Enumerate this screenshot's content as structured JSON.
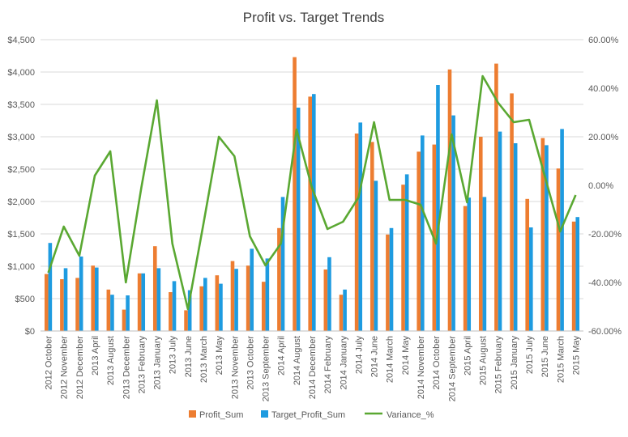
{
  "chart_data": {
    "type": "bar",
    "title": "Profit vs. Target Trends",
    "categories": [
      "2012 October",
      "2012 November",
      "2012 December",
      "2013 April",
      "2013 August",
      "2013 December",
      "2013 February",
      "2013 January",
      "2013 July",
      "2013 June",
      "2013 March",
      "2013 May",
      "2013 November",
      "2013 October",
      "2013 September",
      "2014 April",
      "2014 August",
      "2014 December",
      "2014 February",
      "2014 January",
      "2014 July",
      "2014 June",
      "2014 March",
      "2014 May",
      "2014 November",
      "2014 October",
      "2014 September",
      "2015 April",
      "2015 August",
      "2015 February",
      "2015 January",
      "2015 July",
      "2015 June",
      "2015 March",
      "2015 May"
    ],
    "series": [
      {
        "name": "Profit_Sum",
        "type": "bar",
        "axis": "left",
        "color": "#ed7d31",
        "values": [
          880,
          800,
          820,
          1010,
          640,
          330,
          890,
          1310,
          600,
          320,
          690,
          860,
          1080,
          1010,
          760,
          1590,
          4230,
          3620,
          950,
          560,
          3050,
          2920,
          1490,
          2260,
          2770,
          2880,
          4040,
          1930,
          3000,
          4130,
          3670,
          2040,
          2980,
          2510,
          1690
        ]
      },
      {
        "name": "Target_Profit_Sum",
        "type": "bar",
        "axis": "left",
        "color": "#1e9be0",
        "values": [
          1360,
          970,
          1150,
          980,
          560,
          550,
          890,
          970,
          770,
          630,
          820,
          730,
          960,
          1270,
          1120,
          2070,
          3450,
          3660,
          1140,
          640,
          3220,
          2320,
          1590,
          2420,
          3020,
          3800,
          3330,
          2060,
          2070,
          3080,
          2900,
          1600,
          2870,
          3120,
          1760
        ]
      },
      {
        "name": "Variance_%",
        "type": "line",
        "axis": "right",
        "color": "#5aa832",
        "values": [
          -0.36,
          -0.17,
          -0.29,
          0.04,
          0.14,
          -0.4,
          -0.01,
          0.35,
          -0.24,
          -0.51,
          -0.16,
          0.2,
          0.12,
          -0.21,
          -0.33,
          -0.24,
          0.23,
          -0.01,
          -0.18,
          -0.15,
          -0.05,
          0.26,
          -0.06,
          -0.06,
          -0.08,
          -0.24,
          0.21,
          -0.07,
          0.45,
          0.34,
          0.26,
          0.27,
          0.04,
          -0.19,
          -0.04
        ]
      }
    ],
    "y_left": {
      "min": 0,
      "max": 4500,
      "step": 500,
      "ticks": [
        "$0",
        "$500",
        "$1,000",
        "$1,500",
        "$2,000",
        "$2,500",
        "$3,000",
        "$3,500",
        "$4,000",
        "$4,500"
      ]
    },
    "y_right": {
      "min": -0.6,
      "max": 0.6,
      "step": 0.2,
      "ticks": [
        "-60.00%",
        "-40.00%",
        "-20.00%",
        "0.00%",
        "20.00%",
        "40.00%",
        "60.00%"
      ]
    },
    "grid": true,
    "legend_position": "bottom"
  },
  "colors": {
    "grid": "#d9d9d9",
    "text": "#595959",
    "title": "#404040"
  }
}
